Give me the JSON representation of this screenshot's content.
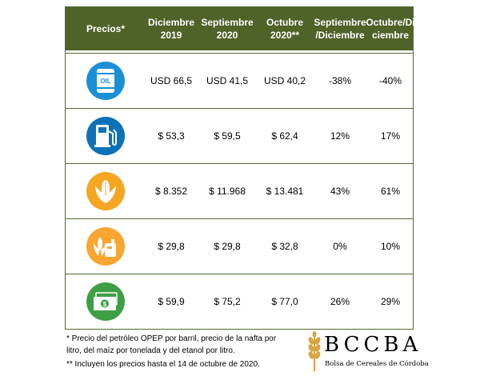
{
  "colors": {
    "header_bg": "#4f6228",
    "border": "#556b2f",
    "oil_blue": "#1b8fd6",
    "fuel_blue": "#0c72b8",
    "corn_orange": "#f6a623",
    "ethanol_orange": "#f8a532",
    "money_green": "#3e9f45"
  },
  "table": {
    "headers": [
      "Precios*",
      "Diciembre\n2019",
      "Septiembre\n2020",
      "Octubre\n2020**",
      "Septiembre\n/Diciembre",
      "Octubre/Di\nciembre"
    ],
    "rows": [
      {
        "icon": "oil-barrel-icon",
        "oil_label": "OIL",
        "values": [
          "USD 66,5",
          "USD 41,5",
          "USD 40,2",
          "-38%",
          "-40%"
        ]
      },
      {
        "icon": "fuel-pump-icon",
        "values": [
          "$ 53,3",
          "$ 59,5",
          "$ 62,4",
          "12%",
          "17%"
        ]
      },
      {
        "icon": "corn-icon",
        "values": [
          "$ 8.352",
          "$ 11.968",
          "$ 13.481",
          "43%",
          "61%"
        ]
      },
      {
        "icon": "ethanol-can-icon",
        "values": [
          "$ 29,8",
          "$ 29,8",
          "$ 32,8",
          "0%",
          "10%"
        ]
      },
      {
        "icon": "money-bill-icon",
        "values": [
          "$ 59,9",
          "$ 75,2",
          "$ 77,0",
          "26%",
          "29%"
        ]
      }
    ]
  },
  "footnotes": {
    "line1": "* Precio del petróleo OPEP por barril, precio de la nafta por",
    "line2": "litro, del maíz por tonelada y del etanol por litro.",
    "line3": "** Incluyen los precios hasta el 14 de octubre de 2020."
  },
  "logo": {
    "text": "BCCBA",
    "subtitle": "Bolsa de Cereales de Córdoba"
  }
}
